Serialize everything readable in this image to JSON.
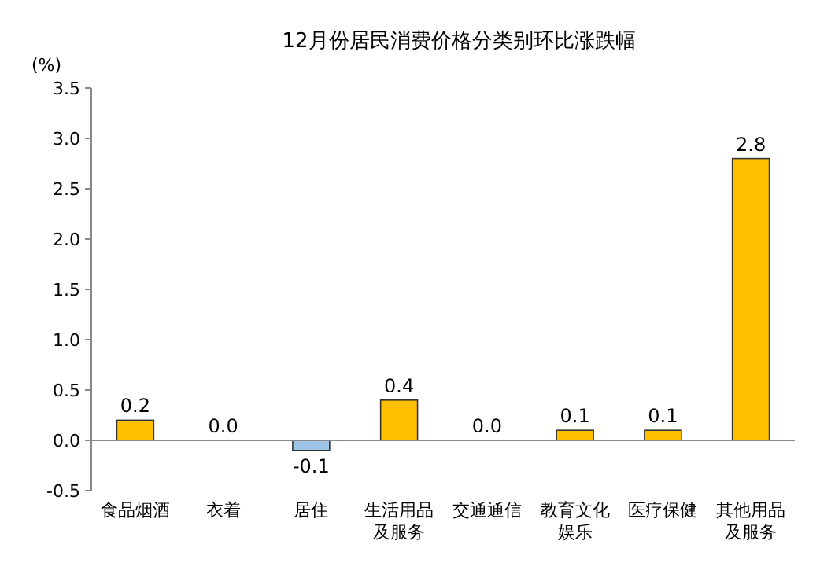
{
  "chart_data": {
    "type": "bar",
    "title": "12月份居民消费价格分类别环比涨跌幅",
    "ylabel": "(%)",
    "categories": [
      "食品烟酒",
      "衣着",
      "居住",
      "生活用品及服务",
      "交通通信",
      "教育文化娱乐",
      "医疗保健",
      "其他用品及服务"
    ],
    "values": [
      0.2,
      0.0,
      -0.1,
      0.4,
      0.0,
      0.1,
      0.1,
      2.8
    ],
    "value_labels": [
      "0.2",
      "0.0",
      "-0.1",
      "0.4",
      "0.0",
      "0.1",
      "0.1",
      "2.8"
    ],
    "colors": [
      "#ffc000",
      "#ffc000",
      "#9dc3e6",
      "#ffc000",
      "#ffc000",
      "#ffc000",
      "#ffc000",
      "#ffc000"
    ],
    "ylim": [
      -0.5,
      3.5
    ],
    "yticks": [
      {
        "value": -0.5,
        "label": "-0.5"
      },
      {
        "value": 0,
        "label": "0.0"
      },
      {
        "value": 0.5,
        "label": "0.5"
      },
      {
        "value": 1,
        "label": "1.0"
      },
      {
        "value": 1.5,
        "label": "1.5"
      },
      {
        "value": 2,
        "label": "2.0"
      },
      {
        "value": 2.5,
        "label": "2.5"
      },
      {
        "value": 3,
        "label": "3.0"
      },
      {
        "value": 3.5,
        "label": "3.5"
      }
    ]
  }
}
